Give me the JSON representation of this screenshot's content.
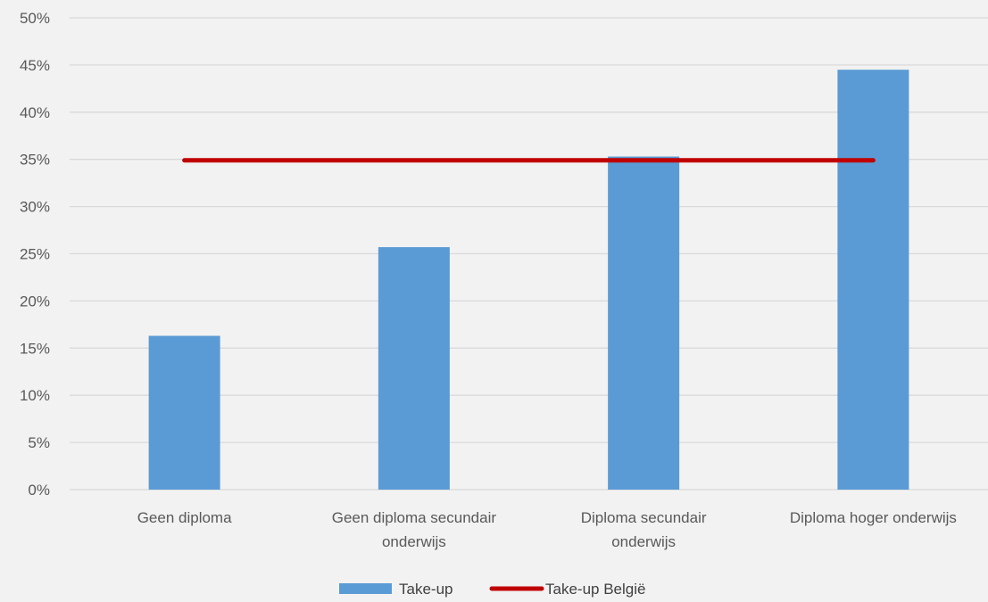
{
  "chart_data": {
    "type": "bar",
    "categories": [
      [
        "Geen diploma"
      ],
      [
        "Geen diploma secundair",
        "onderwijs"
      ],
      [
        "Diploma secundair",
        "onderwijs"
      ],
      [
        "Diploma hoger onderwijs"
      ]
    ],
    "series": [
      {
        "name": "Take-up",
        "type": "bar",
        "values": [
          0.163,
          0.257,
          0.353,
          0.445
        ],
        "color": "#5b9bd5"
      },
      {
        "name": "Take-up België",
        "type": "line",
        "values": [
          0.349,
          0.349,
          0.349,
          0.349
        ],
        "color": "#c00000"
      }
    ],
    "ylim": [
      0,
      0.5
    ],
    "yticks": [
      0,
      0.05,
      0.1,
      0.15,
      0.2,
      0.25,
      0.3,
      0.35,
      0.4,
      0.45,
      0.5
    ],
    "ytick_labels": [
      "0%",
      "5%",
      "10%",
      "15%",
      "20%",
      "25%",
      "30%",
      "35%",
      "40%",
      "45%",
      "50%"
    ],
    "grid": true,
    "legend_position": "bottom",
    "background": "#f2f2f2",
    "gridline_color": "#d9d9d9"
  }
}
